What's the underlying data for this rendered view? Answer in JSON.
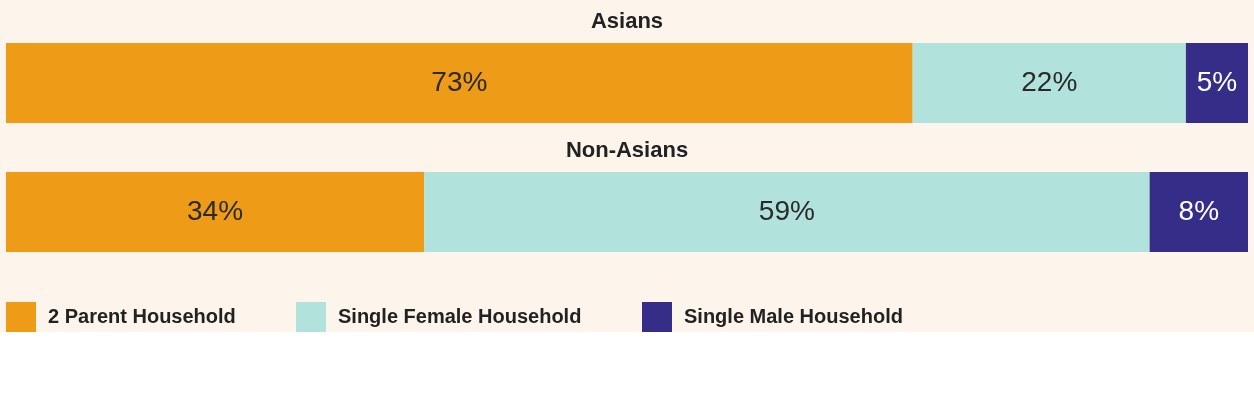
{
  "chart_data": [
    {
      "type": "bar",
      "title": "Asians",
      "orientation": "horizontal",
      "stacked": true,
      "categories": [
        null
      ],
      "tick_labels": false,
      "legend": false,
      "series": [
        {
          "color": "#ee9c17",
          "values": [
            73
          ],
          "value_labels": [
            "73%"
          ]
        },
        {
          "color": "#b1e3dc",
          "values": [
            22
          ],
          "value_labels": [
            "22%"
          ]
        },
        {
          "color": "#352d88",
          "values": [
            5
          ],
          "value_labels": [
            "5%"
          ]
        }
      ]
    },
    {
      "type": "bar",
      "title": "Non-Asians",
      "orientation": "horizontal",
      "stacked": true,
      "categories": [
        null
      ],
      "tick_labels": false,
      "legend": "bottom",
      "series": [
        {
          "name": "2 Parent Household",
          "color": "#ee9c17",
          "values": [
            34
          ],
          "value_labels": [
            "34%"
          ]
        },
        {
          "name": "Single Female Household",
          "color": "#b1e3dc",
          "values": [
            59
          ],
          "value_labels": [
            "59%"
          ]
        },
        {
          "name": "Single Male Household",
          "color": "#352d88",
          "values": [
            8
          ],
          "value_labels": [
            "8%"
          ]
        }
      ]
    }
  ]
}
